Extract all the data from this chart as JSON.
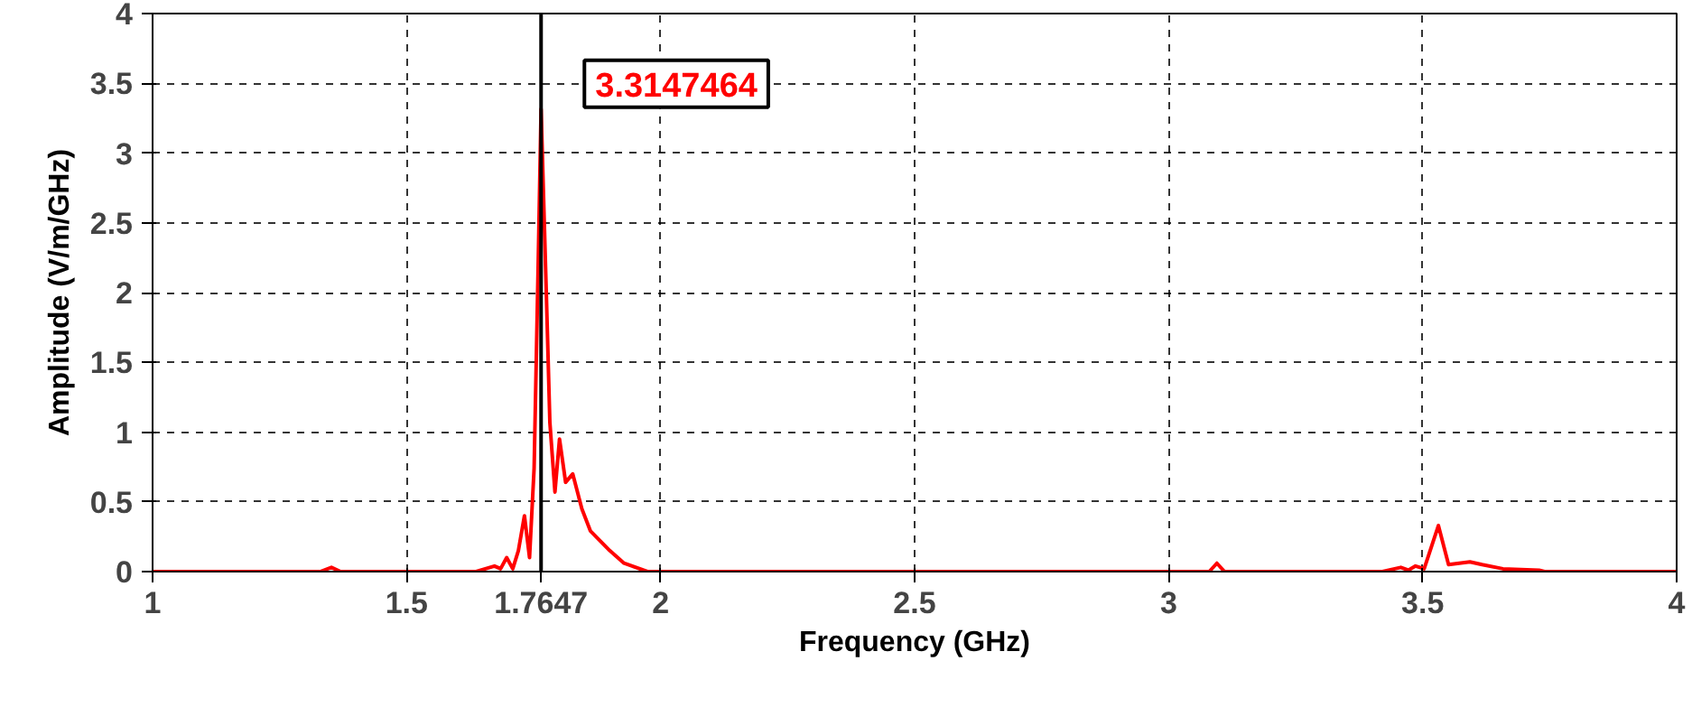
{
  "chart_data": {
    "type": "line",
    "xlabel": "Frequency (GHz)",
    "ylabel": "Amplitude (V/m/GHz)",
    "xlim": [
      1,
      4
    ],
    "ylim": [
      0,
      4
    ],
    "xticks": [
      1,
      1.5,
      2,
      2.5,
      3,
      3.5,
      4
    ],
    "yticks": [
      0,
      0.5,
      1,
      1.5,
      2,
      2.5,
      3,
      3.5,
      4
    ],
    "grid": true,
    "legend": false,
    "marker": "none",
    "line_style": "solid",
    "series": [
      {
        "color": "#ff0000",
        "x": [
          1,
          1.33,
          1.352,
          1.37,
          1.62,
          1.637,
          1.673,
          1.685,
          1.697,
          1.709,
          1.72,
          1.732,
          1.742,
          1.751,
          1.759,
          1.7647,
          1.775,
          1.782,
          1.792,
          1.801,
          1.813,
          1.827,
          1.845,
          1.862,
          1.9,
          1.928,
          1.974,
          3.08,
          3.095,
          3.11,
          3.421,
          3.457,
          3.472,
          3.486,
          3.503,
          3.531,
          3.551,
          3.593,
          3.617,
          3.658,
          3.729,
          3.74,
          4
        ],
        "values": [
          0,
          0,
          0.03,
          0,
          0,
          0,
          0.04,
          0.02,
          0.1,
          0.02,
          0.15,
          0.4,
          0.1,
          0.74,
          2.2,
          3.3147464,
          2.0,
          1.07,
          0.57,
          0.95,
          0.64,
          0.7,
          0.45,
          0.29,
          0.15,
          0.06,
          0,
          0,
          0.06,
          0,
          0,
          0.03,
          0.01,
          0.04,
          0.02,
          0.33,
          0.05,
          0.07,
          0.05,
          0.02,
          0.01,
          0,
          0
        ]
      }
    ],
    "ref_lines": [
      {
        "axis": "x",
        "value": 1.7647,
        "label": "1.7647",
        "color": "#000000"
      }
    ],
    "annotations": [
      {
        "text": "3.3147464",
        "x": 1.7647,
        "y": 3.3147464
      }
    ]
  }
}
